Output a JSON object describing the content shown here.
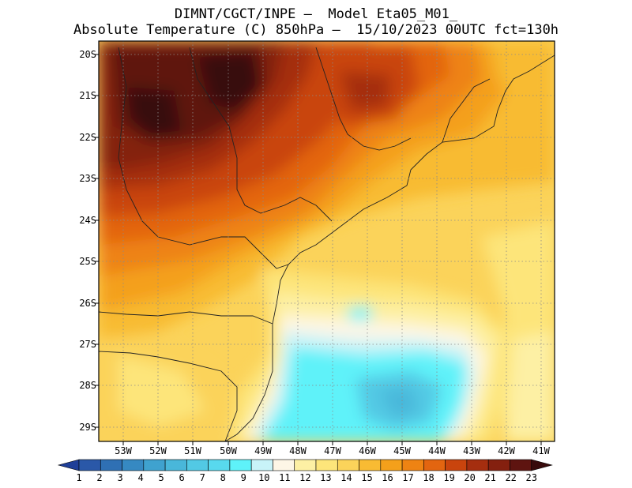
{
  "title_line1": "DIMNT/CGCT/INPE —  Model Eta05_M01_",
  "title_line2": "Absolute Temperature (C) 850hPa —  15/10/2023 00UTC fct=130h",
  "lat_labels": [
    "20S",
    "21S",
    "22S",
    "23S",
    "24S",
    "25S",
    "26S",
    "27S",
    "28S",
    "29S"
  ],
  "lon_labels": [
    "53W",
    "52W",
    "51W",
    "50W",
    "49W",
    "48W",
    "47W",
    "46W",
    "45W",
    "44W",
    "43W",
    "42W",
    "41W"
  ],
  "colorbar": {
    "labels": [
      "1",
      "2",
      "3",
      "4",
      "5",
      "6",
      "7",
      "8",
      "9",
      "10",
      "11",
      "12",
      "13",
      "14",
      "15",
      "16",
      "17",
      "18",
      "19",
      "20",
      "21",
      "22",
      "23"
    ],
    "colors": [
      "#1f3f98",
      "#2a58a8",
      "#2f70b4",
      "#3689c2",
      "#3fa2cf",
      "#49b7da",
      "#52c9e4",
      "#58d9ee",
      "#5ef2f9",
      "#c8f3f8",
      "#fdf6e6",
      "#fdf0a4",
      "#fde57a",
      "#fbd35a",
      "#f8bb33",
      "#f4a01b",
      "#ee8313",
      "#e36510",
      "#c9440d",
      "#a52e0f",
      "#84200f",
      "#5e1410",
      "#380b0c"
    ]
  }
}
